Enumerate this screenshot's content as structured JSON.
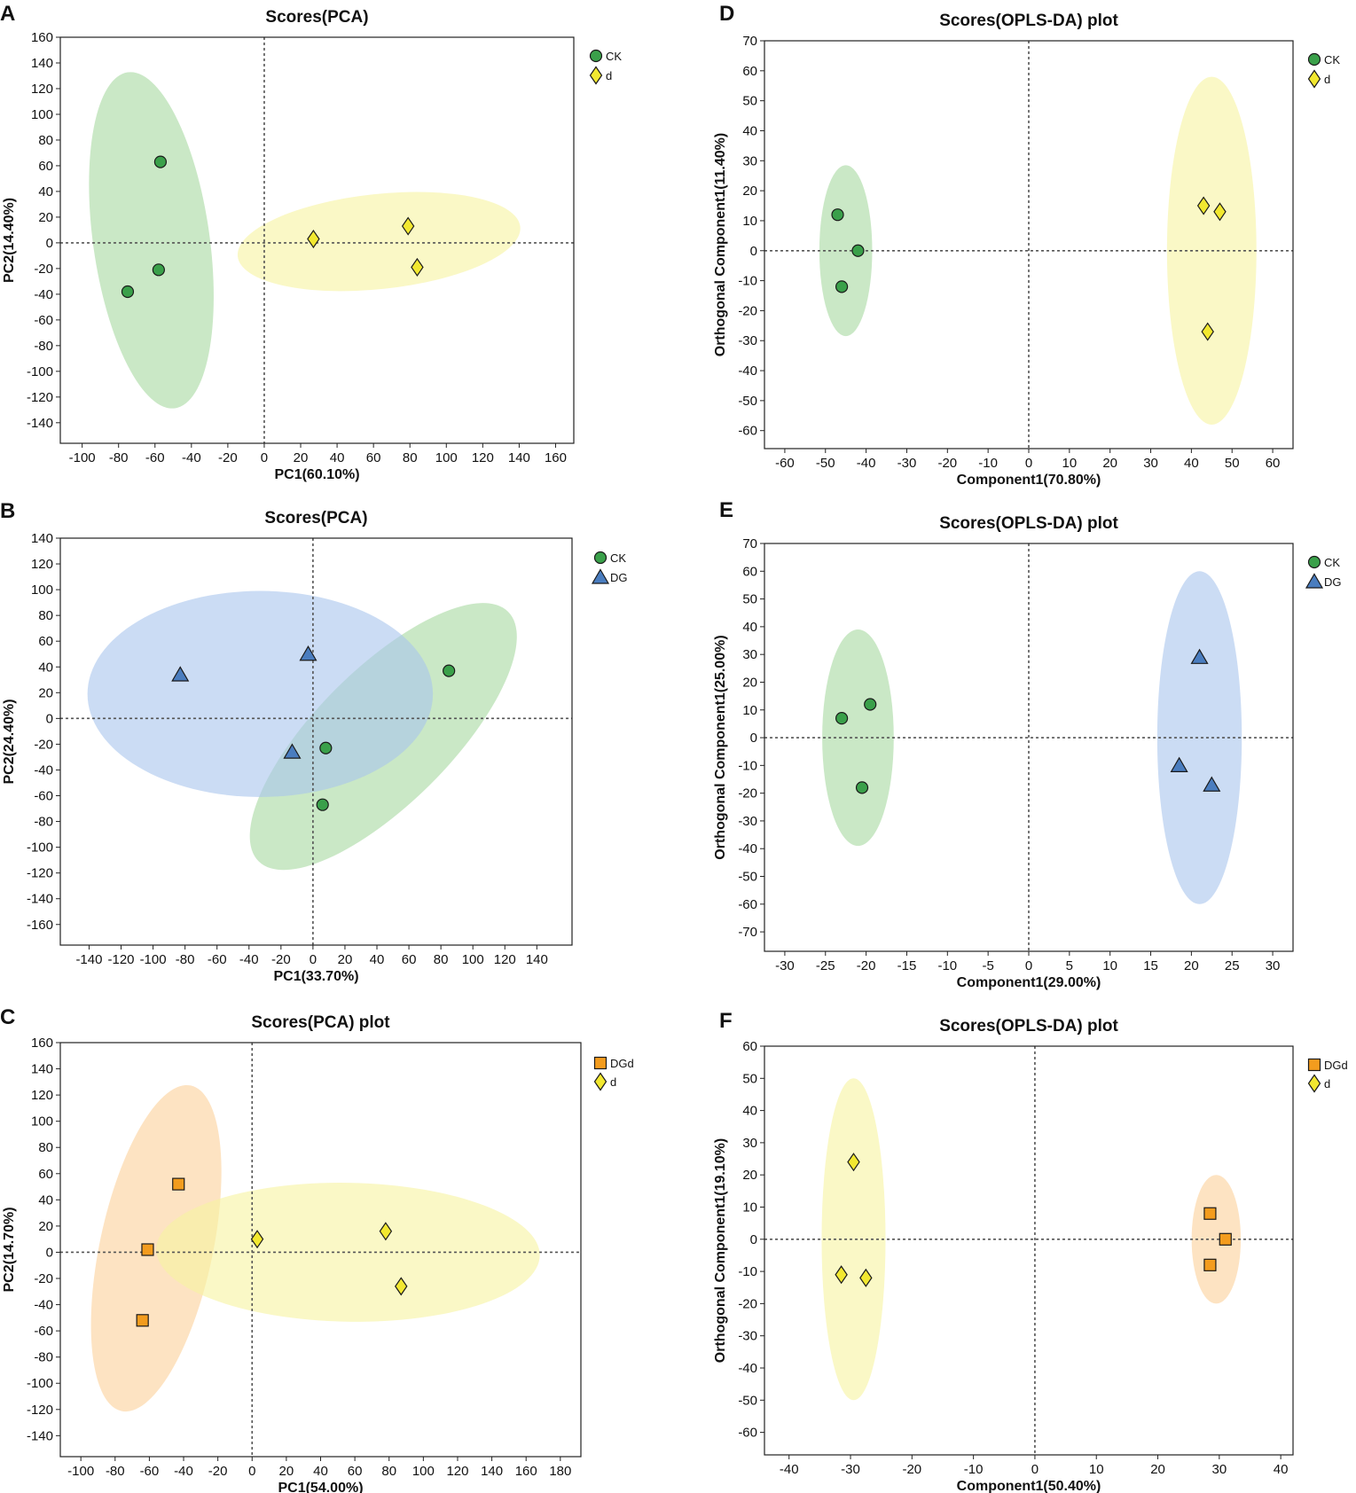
{
  "figure": {
    "colors": {
      "CK": "#3aa04a",
      "d": "#f2e830",
      "DG": "#4a7dbf",
      "DGd": "#f39c1e"
    },
    "group_fill": {
      "CK": "#a6d8a0",
      "d": "#f7f3a0",
      "DG": "#a9c5ec",
      "DGd": "#fbd09a"
    },
    "symbols": {
      "CK": "circle",
      "d": "diamond",
      "DG": "triangle",
      "DGd": "square"
    }
  },
  "chart_data": [
    {
      "panel": "A",
      "type": "scatter",
      "title": "Scores(PCA)",
      "xlabel": "PC1(60.10%)",
      "ylabel": "PC2(14.40%)",
      "xlim": [
        -112,
        170
      ],
      "ylim": [
        -156,
        160
      ],
      "xticks": [
        -100,
        -80,
        -60,
        -40,
        -20,
        0,
        20,
        40,
        60,
        80,
        100,
        120,
        140,
        160
      ],
      "yticks": [
        160,
        140,
        120,
        100,
        80,
        60,
        40,
        20,
        0,
        -20,
        -40,
        -60,
        -80,
        -100,
        -120,
        -140
      ],
      "series": [
        {
          "name": "CK",
          "points": [
            [
              -57,
              63
            ],
            [
              -58,
              -21
            ],
            [
              -75,
              -38
            ]
          ],
          "ellipse": {
            "cx": -62,
            "cy": 2,
            "rx": 32,
            "ry": 132,
            "angle_deg": -8
          }
        },
        {
          "name": "d",
          "points": [
            [
              27,
              3
            ],
            [
              79,
              13
            ],
            [
              84,
              -19
            ]
          ],
          "ellipse": {
            "cx": 63,
            "cy": 1,
            "rx": 78,
            "ry": 37,
            "angle_deg": -6
          }
        }
      ],
      "legend": [
        "CK",
        "d"
      ]
    },
    {
      "panel": "B",
      "type": "scatter",
      "title": "Scores(PCA)",
      "xlabel": "PC1(33.70%)",
      "ylabel": "PC2(24.40%)",
      "xlim": [
        -158,
        162
      ],
      "ylim": [
        -176,
        140
      ],
      "xticks": [
        -140,
        -120,
        -100,
        -80,
        -60,
        -40,
        -20,
        0,
        20,
        40,
        60,
        80,
        100,
        120,
        140
      ],
      "yticks": [
        140,
        120,
        100,
        80,
        60,
        40,
        20,
        0,
        -20,
        -40,
        -60,
        -80,
        -100,
        -120,
        -140,
        -160
      ],
      "series": [
        {
          "name": "CK",
          "points": [
            [
              85,
              37
            ],
            [
              8,
              -23
            ],
            [
              6,
              -67
            ]
          ],
          "ellipse": {
            "cx": 44,
            "cy": -14,
            "rx": 42,
            "ry": 137,
            "angle_deg": 45
          }
        },
        {
          "name": "DG",
          "points": [
            [
              -3,
              50
            ],
            [
              -83,
              34
            ],
            [
              -13,
              -26
            ]
          ],
          "ellipse": {
            "cx": -33,
            "cy": 19,
            "rx": 108,
            "ry": 80,
            "angle_deg": 0
          }
        }
      ],
      "legend": [
        "CK",
        "DG"
      ]
    },
    {
      "panel": "C",
      "type": "scatter",
      "title": "Scores(PCA) plot",
      "xlabel": "PC1(54.00%)",
      "ylabel": "PC2(14.70%)",
      "xlim": [
        -112,
        192
      ],
      "ylim": [
        -156,
        160
      ],
      "xticks": [
        -100,
        -80,
        -60,
        -40,
        -20,
        0,
        20,
        40,
        60,
        80,
        100,
        120,
        140,
        160,
        180
      ],
      "yticks": [
        160,
        140,
        120,
        100,
        80,
        60,
        40,
        20,
        0,
        -20,
        -40,
        -60,
        -80,
        -100,
        -120,
        -140
      ],
      "series": [
        {
          "name": "DGd",
          "points": [
            [
              -43,
              52
            ],
            [
              -61,
              2
            ],
            [
              -64,
              -52
            ]
          ],
          "ellipse": {
            "cx": -56,
            "cy": 3,
            "rx": 33,
            "ry": 127,
            "angle_deg": 12
          }
        },
        {
          "name": "d",
          "points": [
            [
              3,
              10
            ],
            [
              78,
              16
            ],
            [
              87,
              -26
            ]
          ],
          "ellipse": {
            "cx": 56,
            "cy": 0,
            "rx": 112,
            "ry": 53,
            "angle_deg": 1
          }
        }
      ],
      "legend": [
        "DGd",
        "d"
      ]
    },
    {
      "panel": "D",
      "type": "scatter",
      "title": "Scores(OPLS-DA) plot",
      "xlabel": "Component1(70.80%)",
      "ylabel": "Orthogonal Component1(11.40%)",
      "xlim": [
        -65,
        65
      ],
      "ylim": [
        -66,
        70
      ],
      "xticks": [
        -60,
        -50,
        -40,
        -30,
        -20,
        -10,
        0,
        10,
        20,
        30,
        40,
        50,
        60
      ],
      "yticks": [
        70,
        60,
        50,
        40,
        30,
        20,
        10,
        0,
        -10,
        -20,
        -30,
        -40,
        -50,
        -60
      ],
      "series": [
        {
          "name": "CK",
          "points": [
            [
              -47,
              12
            ],
            [
              -42,
              0
            ],
            [
              -46,
              -12
            ]
          ],
          "ellipse": {
            "cx": -45,
            "cy": 0,
            "rx": 6.5,
            "ry": 28.5,
            "angle_deg": 0
          }
        },
        {
          "name": "d",
          "points": [
            [
              43,
              15
            ],
            [
              47,
              13
            ],
            [
              44,
              -27
            ]
          ],
          "ellipse": {
            "cx": 45,
            "cy": 0,
            "rx": 11,
            "ry": 58,
            "angle_deg": 0
          }
        }
      ],
      "legend": [
        "CK",
        "d"
      ]
    },
    {
      "panel": "E",
      "type": "scatter",
      "title": "Scores(OPLS-DA) plot",
      "xlabel": "Component1(29.00%)",
      "ylabel": "Orthogonal Component1(25.00%)",
      "xlim": [
        -32.5,
        32.5
      ],
      "ylim": [
        -77,
        70
      ],
      "xticks": [
        -30,
        -25,
        -20,
        -15,
        -10,
        -5,
        0,
        5,
        10,
        15,
        20,
        25,
        30
      ],
      "yticks": [
        70,
        60,
        50,
        40,
        30,
        20,
        10,
        0,
        -10,
        -20,
        -30,
        -40,
        -50,
        -60,
        -70
      ],
      "series": [
        {
          "name": "CK",
          "points": [
            [
              -23,
              7
            ],
            [
              -19.5,
              12
            ],
            [
              -20.5,
              -18
            ]
          ],
          "ellipse": {
            "cx": -21,
            "cy": 0,
            "rx": 4.4,
            "ry": 39,
            "angle_deg": 0
          }
        },
        {
          "name": "DG",
          "points": [
            [
              21,
              29
            ],
            [
              18.5,
              -10
            ],
            [
              22.5,
              -17
            ]
          ],
          "ellipse": {
            "cx": 21,
            "cy": 0,
            "rx": 5.2,
            "ry": 60,
            "angle_deg": 0
          }
        }
      ],
      "legend": [
        "CK",
        "DG"
      ]
    },
    {
      "panel": "F",
      "type": "scatter",
      "title": "Scores(OPLS-DA) plot",
      "xlabel": "Component1(50.40%)",
      "ylabel": "Orthogonal Component1(19.10%)",
      "xlim": [
        -44,
        42
      ],
      "ylim": [
        -67,
        60
      ],
      "xticks": [
        -40,
        -30,
        -20,
        -10,
        0,
        10,
        20,
        30,
        40
      ],
      "yticks": [
        60,
        50,
        40,
        30,
        20,
        10,
        0,
        -10,
        -20,
        -30,
        -40,
        -50,
        -60
      ],
      "series": [
        {
          "name": "d",
          "points": [
            [
              -29.5,
              24
            ],
            [
              -31.5,
              -11
            ],
            [
              -27.5,
              -12
            ]
          ],
          "ellipse": {
            "cx": -29.5,
            "cy": 0,
            "rx": 5.2,
            "ry": 50,
            "angle_deg": 0
          }
        },
        {
          "name": "DGd",
          "points": [
            [
              28.5,
              8
            ],
            [
              31,
              0
            ],
            [
              28.5,
              -8
            ]
          ],
          "ellipse": {
            "cx": 29.5,
            "cy": 0,
            "rx": 4,
            "ry": 20,
            "angle_deg": 0
          }
        }
      ],
      "legend": [
        "DGd",
        "d"
      ]
    }
  ]
}
